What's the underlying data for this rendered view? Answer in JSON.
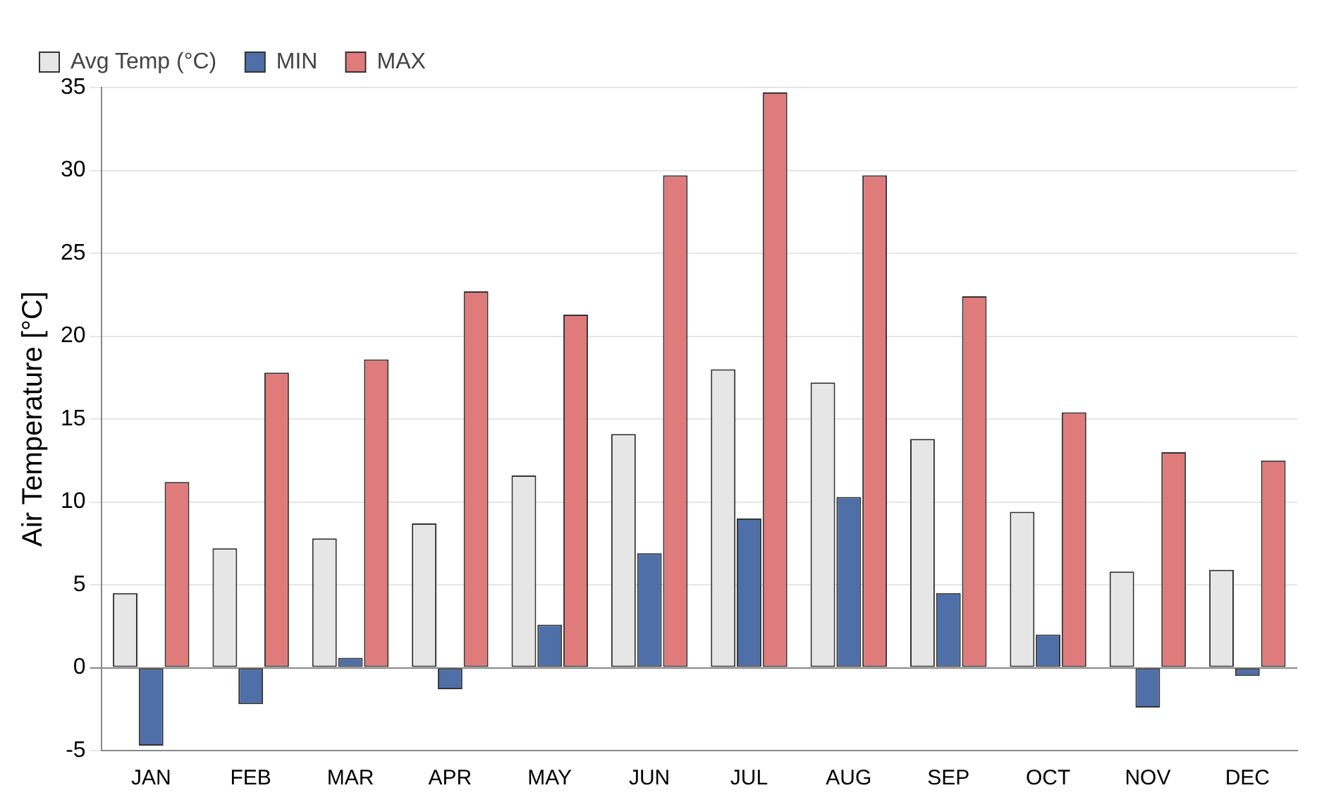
{
  "chart_data": {
    "type": "bar",
    "ylabel": "Air Temperature [°C]",
    "categories": [
      "JAN",
      "FEB",
      "MAR",
      "APR",
      "MAY",
      "JUN",
      "JUL",
      "AUG",
      "SEP",
      "OCT",
      "NOV",
      "DEC"
    ],
    "series": [
      {
        "name": "Avg Temp (°C)",
        "color": "#e6e6e6",
        "values": [
          4.5,
          7.2,
          7.8,
          8.7,
          11.6,
          14.1,
          18.0,
          17.2,
          13.8,
          9.4,
          5.8,
          5.9
        ]
      },
      {
        "name": "MIN",
        "color": "#4f6fa8",
        "values": [
          -4.7,
          -2.2,
          0.6,
          -1.3,
          2.6,
          6.9,
          9.0,
          10.3,
          4.5,
          2.0,
          -2.4,
          -0.5
        ]
      },
      {
        "name": "MAX",
        "color": "#e07b7b",
        "values": [
          11.2,
          17.8,
          18.6,
          22.7,
          21.3,
          29.7,
          34.7,
          29.7,
          22.4,
          15.4,
          13.0,
          12.5
        ]
      }
    ],
    "ylim": [
      -5,
      35
    ],
    "yticks": [
      -5,
      0,
      5,
      10,
      15,
      20,
      25,
      30,
      35
    ],
    "grid": "y",
    "legend": "top left"
  }
}
